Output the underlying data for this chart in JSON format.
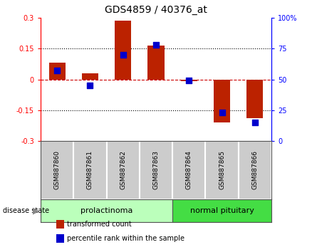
{
  "title": "GDS4859 / 40376_at",
  "samples": [
    "GSM887860",
    "GSM887861",
    "GSM887862",
    "GSM887863",
    "GSM887864",
    "GSM887865",
    "GSM887866"
  ],
  "red_values": [
    0.08,
    0.03,
    0.285,
    0.165,
    -0.01,
    -0.21,
    -0.19
  ],
  "blue_values": [
    57,
    45,
    70,
    78,
    49,
    23,
    15
  ],
  "ylim_left": [
    -0.3,
    0.3
  ],
  "ylim_right": [
    0,
    100
  ],
  "yticks_left": [
    -0.3,
    -0.15,
    0,
    0.15,
    0.3
  ],
  "yticks_right": [
    0,
    25,
    50,
    75,
    100
  ],
  "ytick_labels_left": [
    "-0.3",
    "-0.15",
    "0",
    "0.15",
    "0.3"
  ],
  "ytick_labels_right": [
    "0",
    "25",
    "50",
    "75",
    "100%"
  ],
  "bar_color": "#bb2200",
  "dot_color": "#0000cc",
  "groups": [
    {
      "label": "prolactinoma",
      "start": 0,
      "end": 3,
      "color": "#bbffbb"
    },
    {
      "label": "normal pituitary",
      "start": 4,
      "end": 6,
      "color": "#44dd44"
    }
  ],
  "group_header": "disease state",
  "legend": [
    {
      "label": "transformed count",
      "color": "#bb2200"
    },
    {
      "label": "percentile rank within the sample",
      "color": "#0000cc"
    }
  ],
  "bar_width": 0.5,
  "dot_size": 40,
  "zero_line_color": "#cc0000",
  "grid_color": "#000000",
  "bg_color": "#ffffff",
  "plot_bg_color": "#ffffff"
}
